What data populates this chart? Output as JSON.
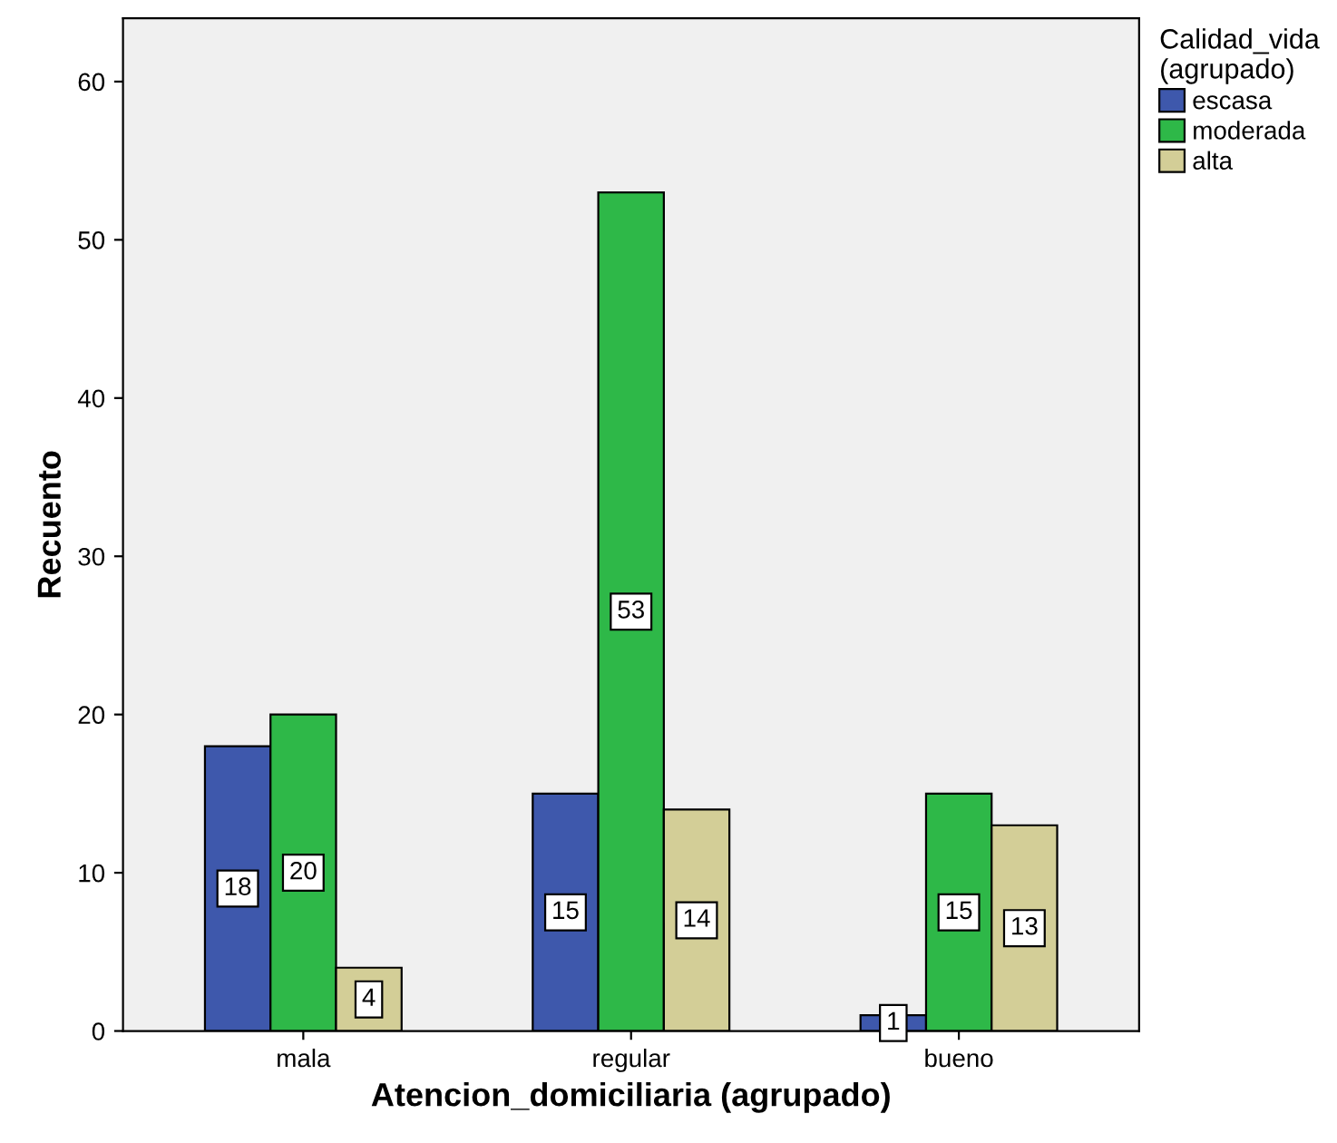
{
  "chart_data": {
    "type": "bar",
    "xlabel": "Atencion_domiciliaria (agrupado)",
    "ylabel": "Recuento",
    "legend_title": "Calidad_vida\n(agrupado)",
    "categories": [
      "mala",
      "regular",
      "bueno"
    ],
    "series": [
      {
        "name": "escasa",
        "color": "#3e58ac",
        "values": [
          18,
          15,
          1
        ]
      },
      {
        "name": "moderada",
        "color": "#2eb848",
        "values": [
          20,
          53,
          15
        ]
      },
      {
        "name": "alta",
        "color": "#d3ce97",
        "values": [
          4,
          14,
          13
        ]
      }
    ],
    "ylim": [
      0,
      64
    ],
    "yticks": [
      0,
      10,
      20,
      30,
      40,
      50,
      60
    ],
    "data_labels": true,
    "grid": false,
    "legend": "top right"
  }
}
